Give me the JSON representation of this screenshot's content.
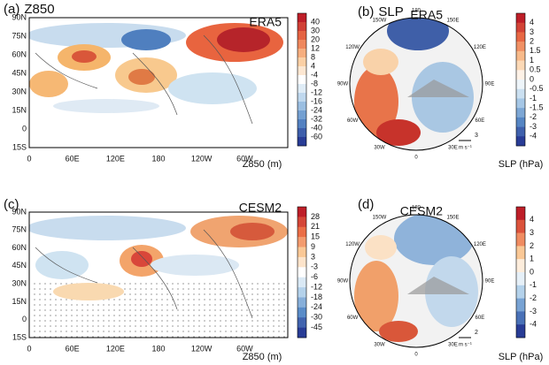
{
  "panels": [
    {
      "label": "(a)",
      "title": "Z850",
      "source": "ERA5",
      "lat_labels": [
        "90N",
        "75N",
        "60N",
        "45N",
        "30N",
        "15N",
        "0",
        "15S"
      ],
      "lon_labels": [
        "0",
        "60E",
        "120E",
        "180",
        "120W",
        "60W"
      ],
      "colorbar_labels": [
        40,
        30,
        20,
        12,
        8,
        4,
        -4,
        -8,
        -12,
        -16,
        -24,
        -32,
        -40,
        -60
      ],
      "colorbar_title": "Z850 (m)"
    },
    {
      "label": "(b)",
      "title": "SLP",
      "source": "ERA5",
      "lon_labels": [
        "180",
        "150W",
        "150E",
        "120W",
        "120E",
        "90W",
        "90E",
        "60W",
        "60E",
        "30W",
        "30E",
        "0"
      ],
      "vector_scale": "3",
      "vector_unit": "m s⁻¹",
      "colorbar_labels": [
        4,
        3,
        2,
        1.5,
        1,
        0.5,
        0,
        -0.5,
        -1,
        -1.5,
        -2,
        -3,
        -4
      ],
      "colorbar_title": "SLP (hPa)"
    },
    {
      "label": "(c)",
      "source": "CESM2",
      "lat_labels": [
        "90N",
        "75N",
        "60N",
        "45N",
        "30N",
        "15N",
        "0",
        "15S"
      ],
      "lon_labels": [
        "0",
        "60E",
        "120E",
        "180",
        "120W",
        "60W"
      ],
      "colorbar_labels": [
        28,
        21,
        15,
        9,
        3,
        -3,
        -6,
        -12,
        -18,
        -24,
        -30,
        -45
      ],
      "colorbar_title": "Z850 (m)"
    },
    {
      "label": "(d)",
      "source": "CESM2",
      "lon_labels": [
        "180",
        "150W",
        "150E",
        "120W",
        "120E",
        "90W",
        "90E",
        "60W",
        "60E",
        "30W",
        "30E",
        "0"
      ],
      "vector_scale": "2",
      "vector_unit": "m s⁻¹",
      "colorbar_labels": [
        4,
        3,
        2,
        1,
        0,
        -1,
        -2,
        -3,
        -4
      ],
      "colorbar_title": "SLP (hPa)"
    }
  ]
}
